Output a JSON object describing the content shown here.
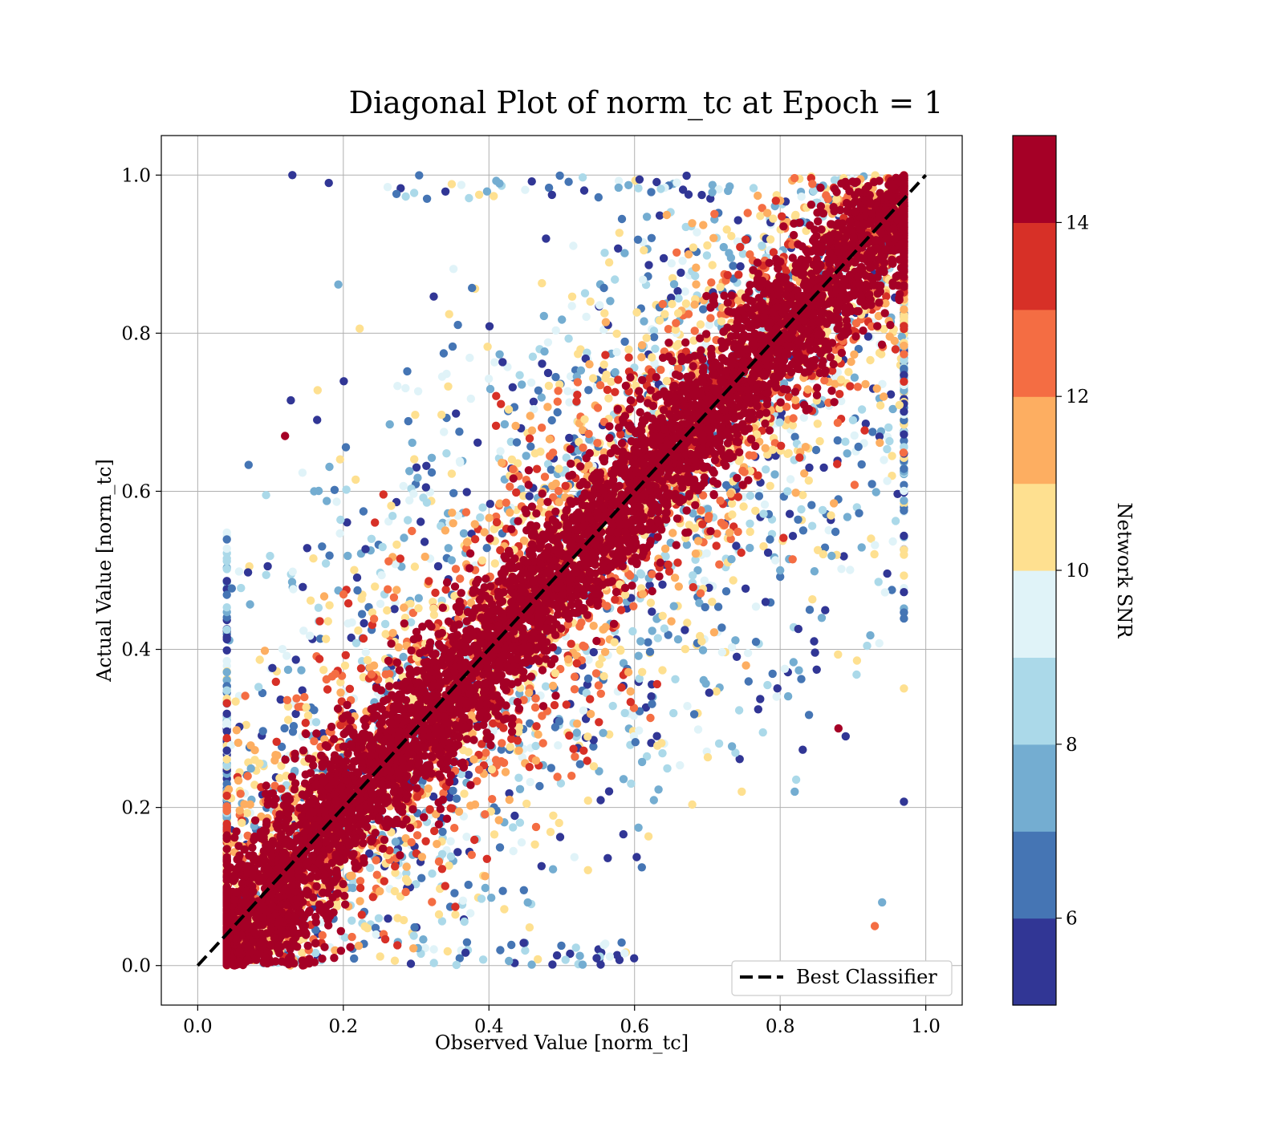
{
  "chart_data": {
    "type": "scatter",
    "title": "Diagonal Plot of norm_tc at Epoch = 1",
    "xlabel": "Observed Value [norm_tc]",
    "ylabel": "Actual Value [norm_tc]",
    "xlim": [
      -0.05,
      1.05
    ],
    "ylim": [
      -0.05,
      1.05
    ],
    "xticks": [
      "0.0",
      "0.2",
      "0.4",
      "0.6",
      "0.8",
      "1.0"
    ],
    "yticks": [
      "0.0",
      "0.2",
      "0.4",
      "0.6",
      "0.8",
      "1.0"
    ],
    "grid": true,
    "legend": {
      "placement": "lower-right",
      "entries": [
        "Best Classifier"
      ]
    },
    "reference_line": {
      "name": "Best Classifier",
      "style": "dashed",
      "color": "#000000",
      "x": [
        0,
        1
      ],
      "y": [
        0,
        1
      ]
    },
    "colorbar": {
      "label": "Network SNR",
      "range": [
        5,
        15
      ],
      "ticks": [
        "6",
        "8",
        "10",
        "12",
        "14"
      ],
      "bin_colors": [
        "#313695",
        "#4575b4",
        "#74add1",
        "#abd9e9",
        "#e0f3f8",
        "#fee090",
        "#fdae61",
        "#f46d43",
        "#d73027",
        "#a50026"
      ]
    },
    "description_of_points": "Tens of thousands of points; high-SNR (dark red) points cluster in a band along the diagonal, lower-SNR (blue/yellow) points scatter widely above and below it.",
    "sample_points": [
      [
        0.13,
        1.0,
        5.5
      ],
      [
        0.18,
        0.99,
        5.5
      ],
      [
        0.12,
        0.67,
        14.5
      ],
      [
        0.16,
        0.6,
        7
      ],
      [
        0.88,
        0.3,
        14.5
      ],
      [
        0.89,
        0.29,
        5.5
      ],
      [
        0.94,
        0.08,
        7
      ],
      [
        0.93,
        0.05,
        12.5
      ],
      [
        0.82,
        0.22,
        7
      ],
      [
        0.86,
        0.63,
        5.5
      ],
      [
        0.84,
        0.63,
        5.5
      ],
      [
        0.81,
        0.6,
        8.5
      ],
      [
        0.9,
        0.69,
        8
      ],
      [
        0.78,
        0.46,
        5.5
      ],
      [
        0.8,
        0.5,
        7
      ]
    ]
  }
}
